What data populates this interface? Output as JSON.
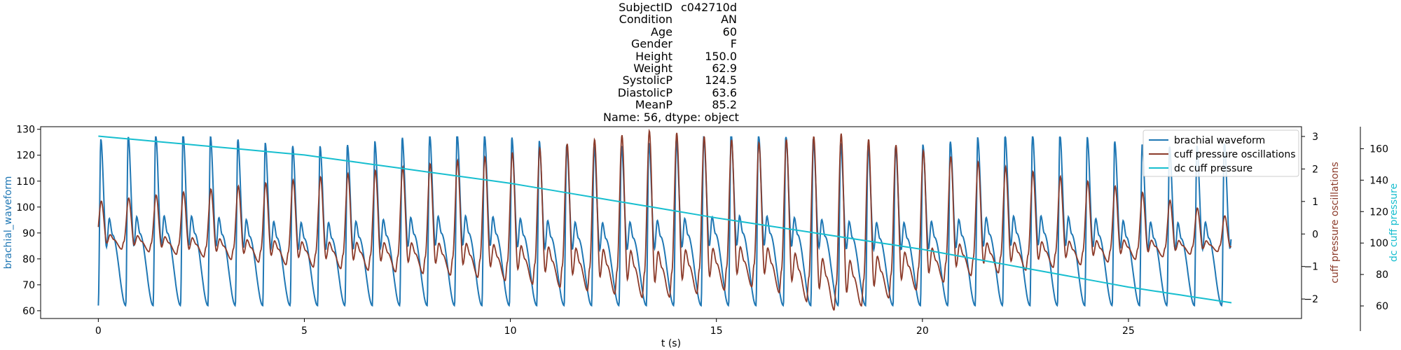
{
  "title": {
    "rows": [
      {
        "key": "SubjectID",
        "value": "c042710d"
      },
      {
        "key": "Condition",
        "value": "AN"
      },
      {
        "key": "Age",
        "value": "60"
      },
      {
        "key": "Gender",
        "value": "F"
      },
      {
        "key": "Height",
        "value": "150.0"
      },
      {
        "key": "Weight",
        "value": "62.9"
      },
      {
        "key": "SystolicP",
        "value": "124.5"
      },
      {
        "key": "DiastolicP",
        "value": "63.6"
      },
      {
        "key": "MeanP",
        "value": "85.2"
      }
    ],
    "footer": "Name: 56, dtype: object"
  },
  "colors": {
    "brachial": "#1f77b4",
    "cuff_osc": "#8c3b2a",
    "dc_cuff": "#17becf"
  },
  "chart_data": {
    "type": "line",
    "xlabel": "t (s)",
    "xlim": [
      -1.4,
      29.2
    ],
    "xticks": [
      0,
      5,
      10,
      15,
      20,
      25
    ],
    "grid": false,
    "legend": {
      "placement": "top-right",
      "entries": [
        "brachial waveform",
        "cuff pressure oscillations",
        "dc cuff pressure"
      ]
    },
    "axes": [
      {
        "id": "left",
        "label": "brachial_waveform",
        "ylim": [
          57,
          131
        ],
        "ticks": [
          60,
          70,
          80,
          90,
          100,
          110,
          120,
          130
        ]
      },
      {
        "id": "right1",
        "label": "cuff pressure oscillations",
        "ylim": [
          -2.6,
          3.3
        ],
        "ticks": [
          -2,
          -1,
          0,
          1,
          2,
          3
        ],
        "tick_labels": [
          "−2",
          "−1",
          "0",
          "1",
          "2",
          "3"
        ]
      },
      {
        "id": "right2",
        "label": "dc cuff pressure",
        "ylim": [
          52,
          174
        ],
        "ticks": [
          60,
          80,
          100,
          120,
          140,
          160
        ]
      }
    ],
    "series": [
      {
        "name": "brachial waveform",
        "axis": "left",
        "kind": "pulse",
        "t_start": 0.0,
        "t_end": 27.5,
        "period": 0.665,
        "sys_peak": 126,
        "diastolic_trough": 62,
        "notch_level": 84
      },
      {
        "name": "cuff pressure oscillations",
        "axis": "right1",
        "kind": "oscillation",
        "t_start": 0.0,
        "t_end": 27.5,
        "period": 0.665,
        "envelope": [
          {
            "t": 0.0,
            "amp": 1.0,
            "trough": -0.4
          },
          {
            "t": 5.0,
            "amp": 1.7,
            "trough": -1.0
          },
          {
            "t": 9.0,
            "amp": 2.3,
            "trough": -1.3
          },
          {
            "t": 13.5,
            "amp": 3.2,
            "trough": -2.0
          },
          {
            "t": 16.0,
            "amp": 2.8,
            "trough": -1.6
          },
          {
            "t": 18.0,
            "amp": 3.1,
            "trough": -2.4
          },
          {
            "t": 21.0,
            "amp": 2.3,
            "trough": -1.3
          },
          {
            "t": 25.0,
            "amp": 1.4,
            "trough": -0.8
          },
          {
            "t": 27.5,
            "amp": 0.5,
            "trough": -0.5
          }
        ]
      },
      {
        "name": "dc cuff pressure",
        "axis": "right2",
        "kind": "line",
        "points": [
          [
            0.0,
            168
          ],
          [
            5.0,
            156
          ],
          [
            10.0,
            138
          ],
          [
            15.0,
            116
          ],
          [
            20.0,
            96
          ],
          [
            25.0,
            72
          ],
          [
            27.5,
            62
          ]
        ]
      }
    ]
  }
}
